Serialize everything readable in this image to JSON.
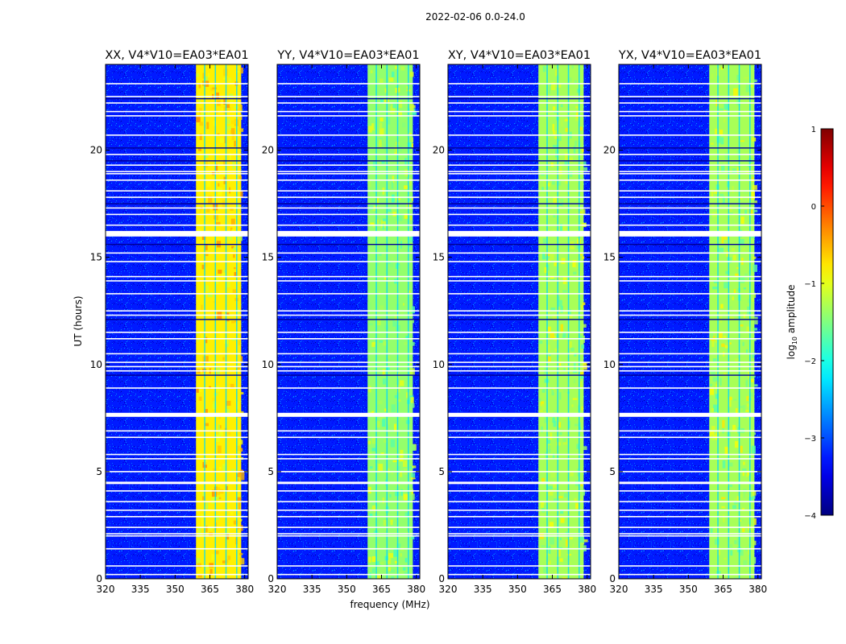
{
  "chart_data": {
    "type": "heatmap",
    "suptitle": "2022-02-06 0.0-24.0",
    "xlabel": "frequency (MHz)",
    "ylabel": "UT (hours)",
    "xlim": [
      320,
      381.5
    ],
    "ylim": [
      0,
      24
    ],
    "xticks": [
      320,
      335,
      350,
      365,
      380
    ],
    "xtick_labels": [
      "320",
      "335",
      "350",
      "365",
      "380"
    ],
    "yticks": [
      0,
      5,
      10,
      15,
      20
    ],
    "ytick_labels": [
      "0",
      "5",
      "10",
      "15",
      "20"
    ],
    "band_mhz": [
      359,
      378.5
    ],
    "colorbar": {
      "label": "log10 amplitude",
      "label_main": "log",
      "label_sub": "10",
      "label_tail": " amplitude",
      "range": [
        -4,
        1
      ],
      "ticks": [
        -4,
        -3,
        -2,
        -1,
        0,
        1
      ],
      "tick_labels": [
        "−4",
        "−3",
        "−2",
        "−1",
        "0",
        "1"
      ],
      "colormap": "jet"
    },
    "gap_hours": [
      0.2,
      0.6,
      1.4,
      2.0,
      2.1,
      2.4,
      2.9,
      3.2,
      3.6,
      4.1,
      4.45,
      4.5,
      5.0,
      5.6,
      5.8,
      6.6,
      6.9,
      7.6,
      7.65,
      7.7,
      8.9,
      9.7,
      9.9,
      10.1,
      10.5,
      11.2,
      11.5,
      12.3,
      12.5,
      13.3,
      13.9,
      14.1,
      14.8,
      15.2,
      16.0,
      16.1,
      16.2,
      16.5,
      17.0,
      17.3,
      17.8,
      18.1,
      18.6,
      18.9,
      19.0,
      19.3,
      19.8,
      20.7,
      21.6,
      21.8,
      22.2,
      22.5,
      23.1
    ],
    "dark_hours": [
      9.5,
      12.1,
      15.6,
      17.5,
      19.5,
      20.1,
      22.4
    ],
    "panels": [
      {
        "title": "XX, V4*V10=EA03*EA01",
        "band_level": -0.8
      },
      {
        "title": "YY, V4*V10=EA03*EA01",
        "band_level": -1.4
      },
      {
        "title": "XY, V4*V10=EA03*EA01",
        "band_level": -1.3
      },
      {
        "title": "YX, V4*V10=EA03*EA01",
        "band_level": -1.3
      }
    ]
  }
}
